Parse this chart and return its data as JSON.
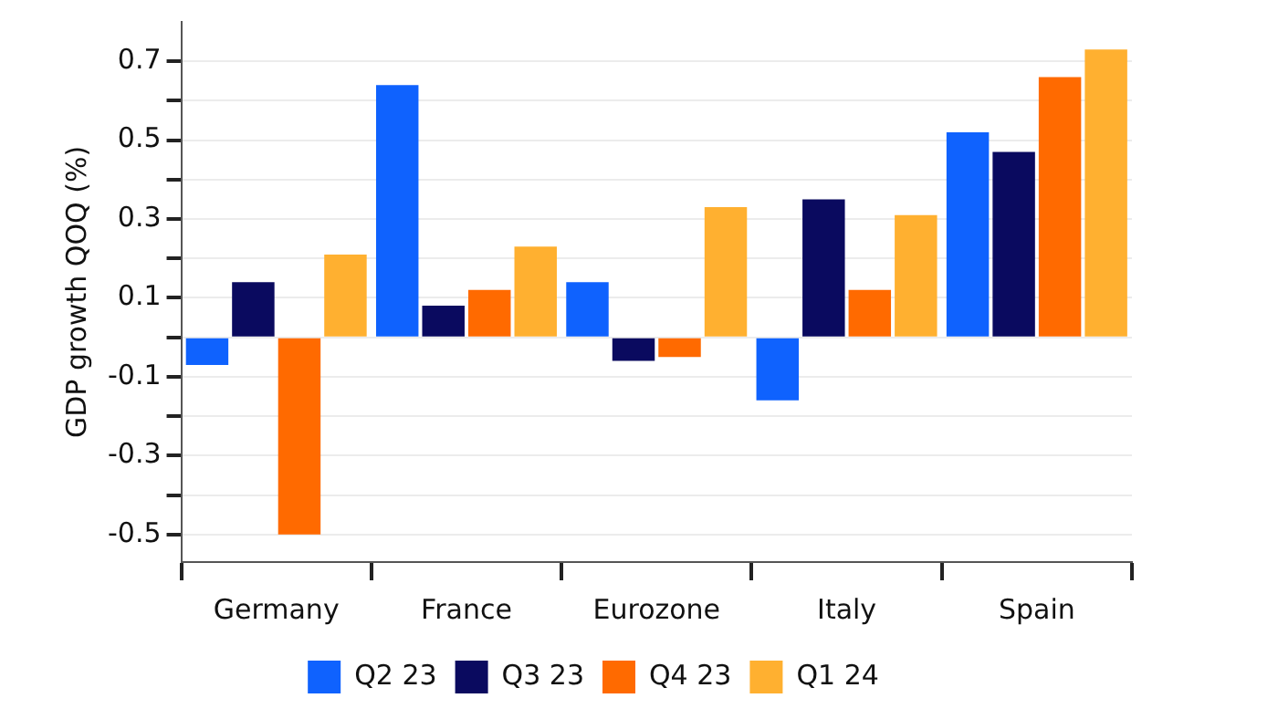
{
  "chart_data": {
    "type": "bar",
    "ylabel": "GDP growth QOQ (%)",
    "categories": [
      "Germany",
      "France",
      "Eurozone",
      "Italy",
      "Spain"
    ],
    "series": [
      {
        "name": "Q2 23",
        "color": "#0f62fe",
        "values": [
          -0.07,
          0.64,
          0.14,
          -0.16,
          0.52
        ]
      },
      {
        "name": "Q3 23",
        "color": "#0a0a5f",
        "values": [
          0.14,
          0.08,
          -0.06,
          0.35,
          0.47
        ]
      },
      {
        "name": "Q4 23",
        "color": "#ff6a00",
        "values": [
          -0.5,
          0.12,
          -0.05,
          0.12,
          0.66
        ]
      },
      {
        "name": "Q1 24",
        "color": "#ffb030",
        "values": [
          0.21,
          0.23,
          0.33,
          0.31,
          0.73
        ]
      }
    ],
    "ylim": [
      -0.57,
      0.8
    ],
    "yticks": [
      -0.5,
      {
        "value": -0.4,
        "label": null
      },
      -0.3,
      {
        "value": -0.2,
        "label": null
      },
      -0.1,
      {
        "value": 0,
        "label": null
      },
      0.1,
      {
        "value": 0.2,
        "label": null
      },
      0.3,
      {
        "value": 0.4,
        "label": null
      },
      0.5,
      {
        "value": 0.6,
        "label": null
      },
      0.7
    ],
    "grid": "y",
    "legend": "bottom"
  }
}
